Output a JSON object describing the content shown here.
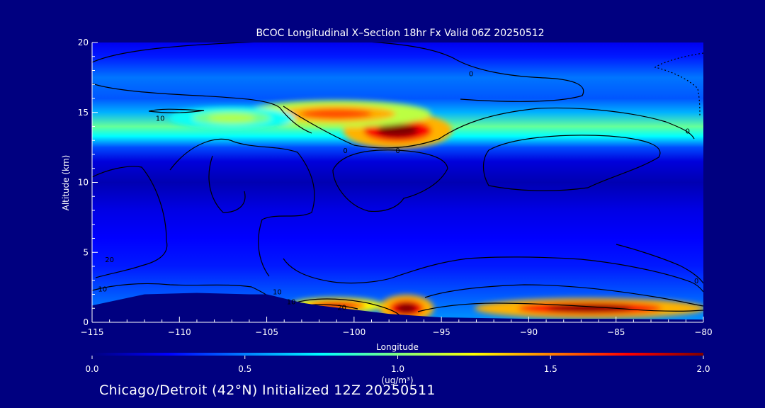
{
  "page": {
    "background": "#000080"
  },
  "chart_data": {
    "type": "heatmap",
    "title": "BCOC Longitudinal X–Section 18hr  Fx Valid 06Z 20250512",
    "xlabel": "Longitude",
    "ylabel": "Altitude (km)",
    "xlim": [
      -115,
      -80
    ],
    "ylim": [
      0,
      20
    ],
    "x_ticks": [
      -115,
      -110,
      -105,
      -100,
      -95,
      -90,
      -85,
      -80
    ],
    "x_tick_labels": [
      "−115",
      "−110",
      "−105",
      "−100",
      "−95",
      "−90",
      "−85",
      "−80"
    ],
    "y_ticks": [
      0,
      5,
      10,
      15,
      20
    ],
    "y_tick_labels": [
      "0",
      "5",
      "10",
      "15",
      "20"
    ],
    "colorbar": {
      "min": 0.0,
      "max": 2.0,
      "ticks": [
        0.0,
        0.5,
        1.0,
        1.5,
        2.0
      ],
      "tick_labels": [
        "0.0",
        "0.5",
        "1.0",
        "1.5",
        "2.0"
      ],
      "unit_label": "(ug/m³)",
      "colormap": [
        "#00007f",
        "#0000ff",
        "#007fff",
        "#00ffff",
        "#7fff7f",
        "#ffff00",
        "#ff7f00",
        "#ff0000",
        "#7f0000"
      ]
    },
    "contour_labels": [
      {
        "text": "0",
        "lon": -93.3,
        "alt": 17.8
      },
      {
        "text": "10",
        "lon": -111.1,
        "alt": 14.6
      },
      {
        "text": "0",
        "lon": -80.9,
        "alt": 13.7
      },
      {
        "text": "0",
        "lon": -100.5,
        "alt": 12.3
      },
      {
        "text": "0",
        "lon": -97.5,
        "alt": 12.3
      },
      {
        "text": "20",
        "lon": -114.0,
        "alt": 4.5
      },
      {
        "text": "10",
        "lon": -114.4,
        "alt": 2.4
      },
      {
        "text": "10",
        "lon": -104.4,
        "alt": 2.2
      },
      {
        "text": "10",
        "lon": -103.6,
        "alt": 1.5
      },
      {
        "text": "20",
        "lon": -100.7,
        "alt": 1.1
      },
      {
        "text": "0",
        "lon": -80.4,
        "alt": 3.0
      }
    ],
    "terrain": [
      {
        "lon": -115,
        "alt": 1.2
      },
      {
        "lon": -112,
        "alt": 2.0
      },
      {
        "lon": -109,
        "alt": 2.1
      },
      {
        "lon": -106,
        "alt": 2.0
      },
      {
        "lon": -105,
        "alt": 2.0
      },
      {
        "lon": -104,
        "alt": 1.7
      },
      {
        "lon": -103,
        "alt": 1.4
      },
      {
        "lon": -102,
        "alt": 1.2
      },
      {
        "lon": -100,
        "alt": 0.9
      },
      {
        "lon": -98,
        "alt": 0.6
      },
      {
        "lon": -95,
        "alt": 0.35
      },
      {
        "lon": -90,
        "alt": 0.25
      },
      {
        "lon": -85,
        "alt": 0.25
      },
      {
        "lon": -80,
        "alt": 0.2
      }
    ],
    "concentration_features": [
      {
        "lon": -97.5,
        "alt": 13.7,
        "value": 2.0,
        "spread_lon": 2.6,
        "spread_alt": 0.8
      },
      {
        "lon": -101.0,
        "alt": 14.9,
        "value": 1.6,
        "spread_lon": 4.5,
        "spread_alt": 0.6
      },
      {
        "lon": -107.0,
        "alt": 14.6,
        "value": 1.1,
        "spread_lon": 3.0,
        "spread_alt": 0.5
      },
      {
        "lon": -86.5,
        "alt": 1.0,
        "value": 2.0,
        "spread_lon": 5.5,
        "spread_alt": 0.45
      },
      {
        "lon": -97.0,
        "alt": 1.0,
        "value": 2.0,
        "spread_lon": 1.3,
        "spread_alt": 0.6
      },
      {
        "lon": -101.0,
        "alt": 1.2,
        "value": 1.8,
        "spread_lon": 2.2,
        "spread_alt": 0.35
      }
    ]
  },
  "footer": {
    "text": "Chicago/Detroit (42°N) Initialized 12Z 20250511"
  }
}
